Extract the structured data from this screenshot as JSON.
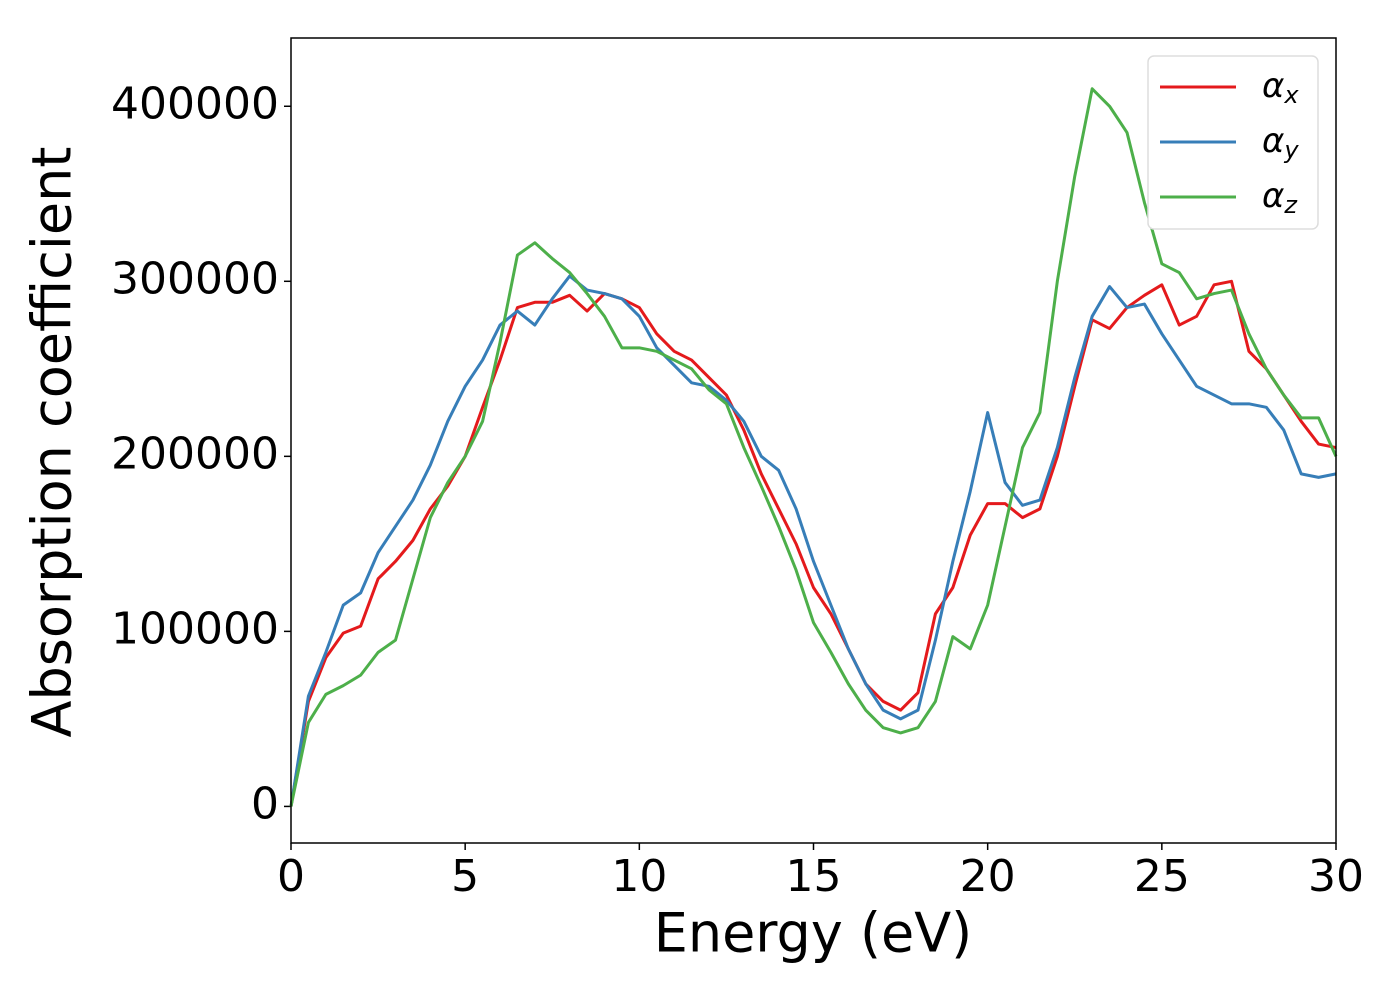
{
  "chart_data": {
    "type": "line",
    "xlabel": "Energy (eV)",
    "ylabel": "Absorption coefficient",
    "x": [
      0,
      0.5,
      1,
      1.5,
      2,
      2.5,
      3,
      3.5,
      4,
      4.5,
      5,
      5.5,
      6,
      6.5,
      7,
      7.5,
      8,
      8.5,
      9,
      9.5,
      10,
      10.5,
      11,
      11.5,
      12,
      12.5,
      13,
      13.5,
      14,
      14.5,
      15,
      15.5,
      16,
      16.5,
      17,
      17.5,
      18,
      18.5,
      19,
      19.5,
      20,
      20.5,
      21,
      21.5,
      22,
      22.5,
      23,
      23.5,
      24,
      24.5,
      25,
      25.5,
      26,
      26.5,
      27,
      27.5,
      28,
      28.5,
      29,
      29.5,
      30
    ],
    "series": [
      {
        "name": "αx",
        "color": "#e41a1c",
        "values": [
          0,
          60000,
          85000,
          99000,
          103000,
          130000,
          140000,
          152000,
          170000,
          183000,
          200000,
          228000,
          255000,
          285000,
          288000,
          288000,
          292000,
          283000,
          293000,
          290000,
          285000,
          270000,
          260000,
          255000,
          245000,
          235000,
          215000,
          190000,
          170000,
          150000,
          125000,
          110000,
          90000,
          70000,
          60000,
          55000,
          65000,
          110000,
          125000,
          155000,
          173000,
          173000,
          165000,
          170000,
          200000,
          240000,
          278000,
          273000,
          285000,
          292000,
          298000,
          275000,
          280000,
          298000,
          300000,
          260000,
          250000,
          235000,
          220000,
          207000,
          205000
        ]
      },
      {
        "name": "αy",
        "color": "#377eb8",
        "values": [
          0,
          63000,
          88000,
          115000,
          122000,
          145000,
          160000,
          175000,
          195000,
          220000,
          240000,
          255000,
          275000,
          283000,
          275000,
          290000,
          303000,
          295000,
          293000,
          290000,
          280000,
          262000,
          252000,
          242000,
          240000,
          232000,
          220000,
          200000,
          192000,
          170000,
          140000,
          115000,
          90000,
          70000,
          55000,
          50000,
          55000,
          95000,
          140000,
          180000,
          225000,
          185000,
          172000,
          175000,
          205000,
          245000,
          280000,
          297000,
          285000,
          287000,
          270000,
          255000,
          240000,
          235000,
          230000,
          230000,
          228000,
          215000,
          190000,
          188000,
          190000
        ]
      },
      {
        "name": "αz",
        "color": "#4daf4a",
        "values": [
          0,
          48000,
          64000,
          69000,
          75000,
          88000,
          95000,
          130000,
          165000,
          185000,
          200000,
          220000,
          265000,
          315000,
          322000,
          313000,
          305000,
          293000,
          280000,
          262000,
          262000,
          260000,
          255000,
          250000,
          238000,
          230000,
          205000,
          183000,
          160000,
          135000,
          105000,
          88000,
          70000,
          55000,
          45000,
          42000,
          45000,
          60000,
          97000,
          90000,
          115000,
          160000,
          205000,
          225000,
          300000,
          360000,
          410000,
          400000,
          385000,
          345000,
          310000,
          305000,
          290000,
          293000,
          295000,
          270000,
          250000,
          235000,
          222000,
          222000,
          200000
        ]
      }
    ],
    "xlim": [
      0,
      30
    ],
    "xticks": [
      0,
      5,
      10,
      15,
      20,
      25,
      30
    ],
    "ylim": [
      -20900,
      439000
    ],
    "yticks": [
      0,
      100000,
      200000,
      300000,
      400000
    ],
    "grid": false,
    "legend": "upper right"
  }
}
